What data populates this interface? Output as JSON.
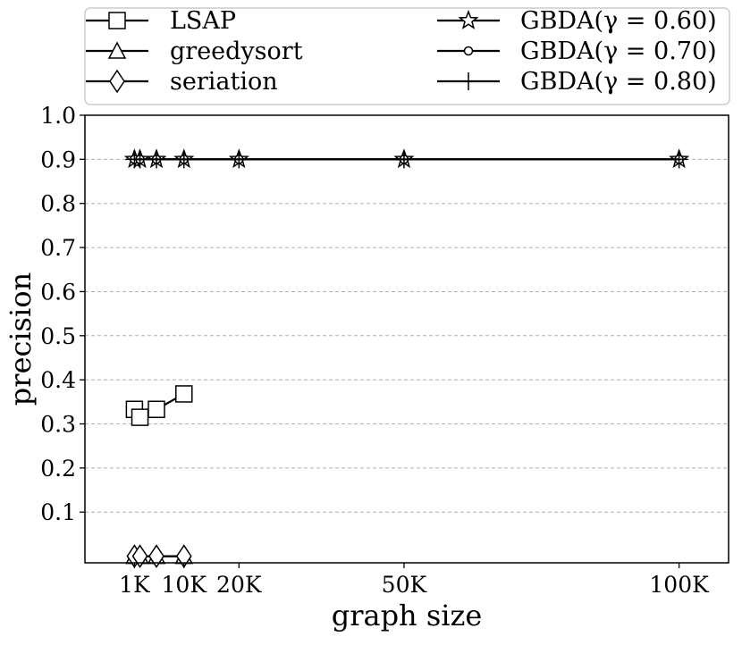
{
  "chart_data": {
    "type": "line",
    "title": "",
    "xlabel": "graph size",
    "ylabel": "precision",
    "x_ticks": [
      {
        "value": 1000,
        "label": "1K"
      },
      {
        "value": 10000,
        "label": "10K"
      },
      {
        "value": 20000,
        "label": "20K"
      },
      {
        "value": 50000,
        "label": "50K"
      },
      {
        "value": 100000,
        "label": "100K"
      }
    ],
    "y_ticks": [
      {
        "value": 0.1,
        "label": "0.1"
      },
      {
        "value": 0.2,
        "label": "0.2"
      },
      {
        "value": 0.3,
        "label": "0.3"
      },
      {
        "value": 0.4,
        "label": "0.4"
      },
      {
        "value": 0.5,
        "label": "0.5"
      },
      {
        "value": 0.6,
        "label": "0.6"
      },
      {
        "value": 0.7,
        "label": "0.7"
      },
      {
        "value": 0.8,
        "label": "0.8"
      },
      {
        "value": 0.9,
        "label": "0.9"
      },
      {
        "value": 1.0,
        "label": "1.0"
      }
    ],
    "xlim": [
      -8000,
      109000
    ],
    "ylim": [
      -0.015,
      1.0
    ],
    "grid": "y-dashed",
    "legend_placement": "top, outside, two columns",
    "series": [
      {
        "name": "LSAP",
        "marker": "square",
        "x": [
          1000,
          2000,
          5000,
          10000
        ],
        "y": [
          0.333,
          0.315,
          0.333,
          0.368
        ]
      },
      {
        "name": "greedysort",
        "marker": "triangle",
        "x": [
          1000,
          2000,
          5000,
          10000
        ],
        "y": [
          0.0,
          0.0,
          0.0,
          0.0
        ]
      },
      {
        "name": "seriation",
        "marker": "diamond",
        "x": [
          1000,
          2000,
          5000,
          10000
        ],
        "y": [
          0.0,
          0.0,
          0.0,
          0.0
        ]
      },
      {
        "name": "GBDA(γ = 0.60)",
        "marker": "star",
        "x": [
          1000,
          2000,
          5000,
          10000,
          20000,
          50000,
          100000
        ],
        "y": [
          0.9,
          0.9,
          0.9,
          0.9,
          0.9,
          0.9,
          0.9
        ]
      },
      {
        "name": "GBDA(γ = 0.70)",
        "marker": "circle",
        "x": [
          1000,
          2000,
          5000,
          10000,
          20000,
          50000,
          100000
        ],
        "y": [
          0.9,
          0.9,
          0.9,
          0.9,
          0.9,
          0.9,
          0.9
        ]
      },
      {
        "name": "GBDA(γ = 0.80)",
        "marker": "plus",
        "x": [
          1000,
          2000,
          5000,
          10000,
          20000,
          50000,
          100000
        ],
        "y": [
          0.9,
          0.9,
          0.9,
          0.9,
          0.9,
          0.9,
          0.9
        ]
      }
    ]
  }
}
